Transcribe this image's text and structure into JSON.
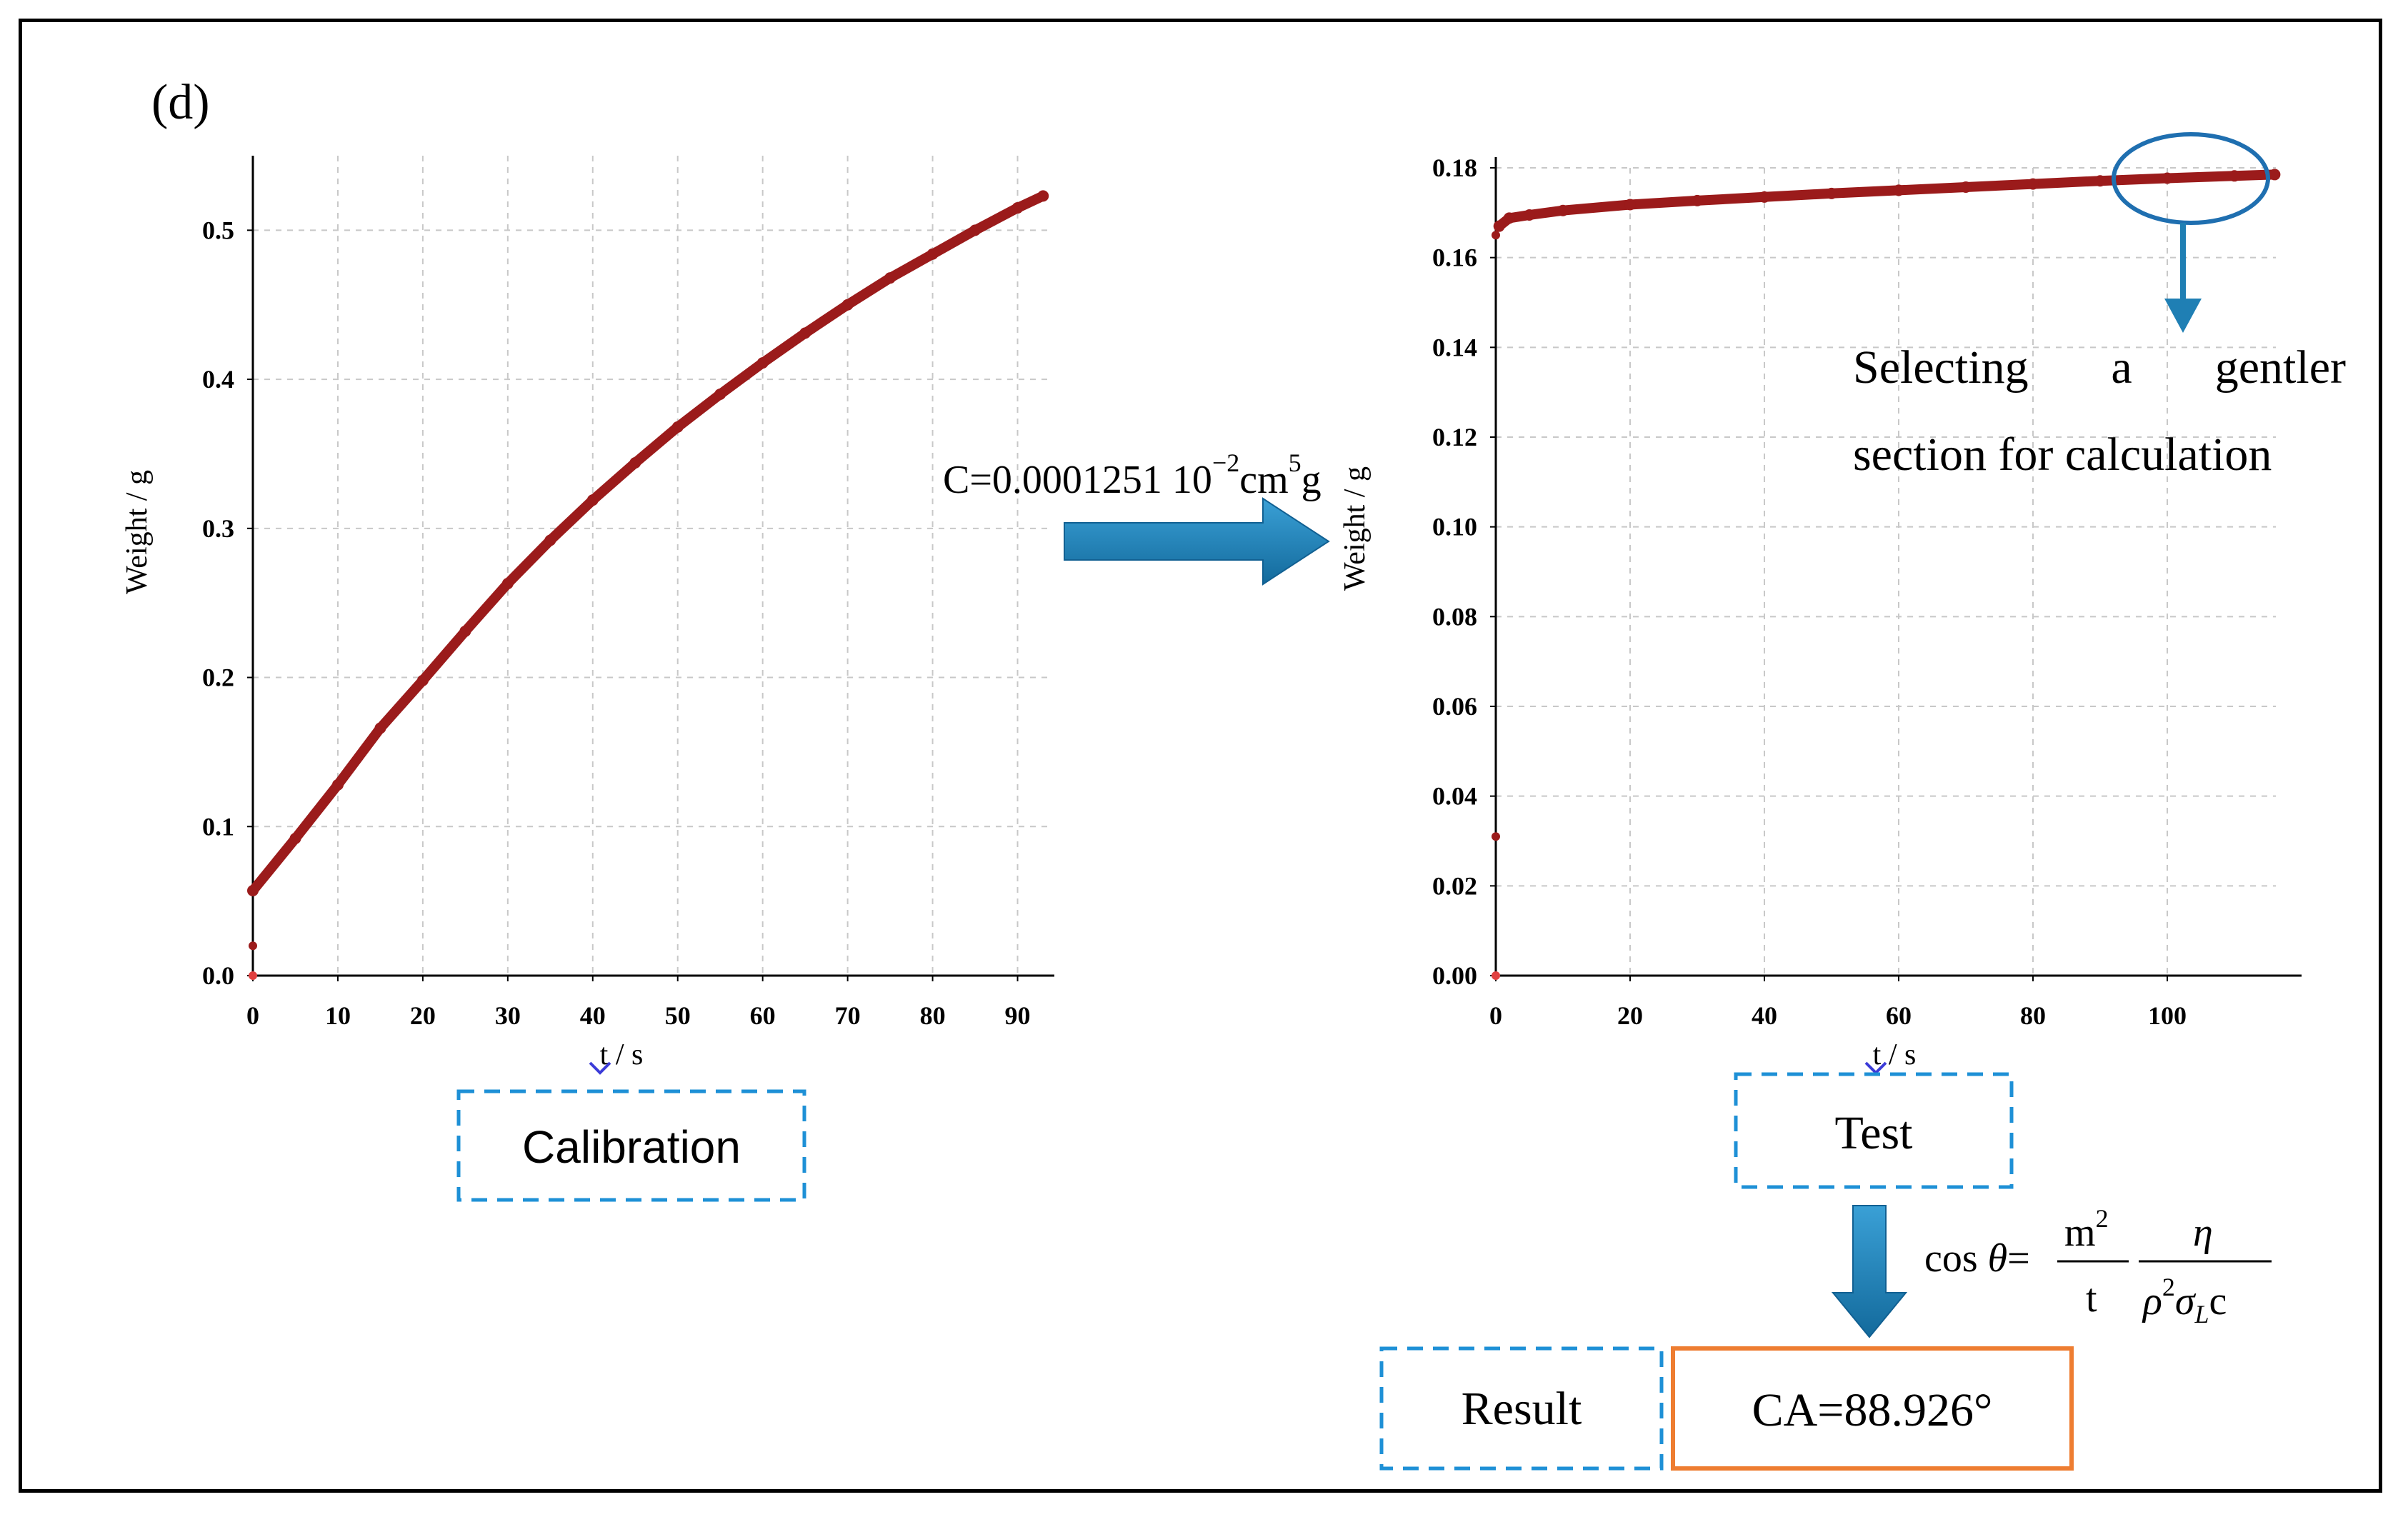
{
  "panel_label": "(d)",
  "colors": {
    "series": "#9b1b1b",
    "arrow": "#1f7fb4",
    "dash_box": "#1e90d6",
    "result_box": "#ee7d31",
    "ellipse": "#1f6fb0"
  },
  "flow": {
    "calibration_label": "Calibration",
    "constant_text": {
      "prefix": "C=0.0001251 10",
      "exp1": "−2",
      "mid": "cm",
      "exp2": "5",
      "suffix": "g"
    },
    "test_label": "Test",
    "selection_note_line1": "Selecting a gentler",
    "selection_note_line1_words": [
      "Selecting",
      "a",
      "gentler"
    ],
    "selection_note_line2": "section for calculation",
    "equation": {
      "lhs_a": "cos ",
      "theta": "θ",
      "eq": "=",
      "num1": "m",
      "num1_sup": "2",
      "den1": "t",
      "num2": "η",
      "den2_a": "ρ",
      "den2_sup": "2",
      "den2_b": "σ",
      "den2_sub": "L",
      "den2_c": "c"
    },
    "result_label": "Result",
    "result_value": "CA=88.926°"
  },
  "chart_data": [
    {
      "type": "scatter",
      "title": "Calibration",
      "xlabel": "t / s",
      "ylabel": "Weight / g",
      "xlim": [
        0,
        95
      ],
      "ylim": [
        0,
        0.55
      ],
      "xticks": [
        0,
        10,
        20,
        30,
        40,
        50,
        60,
        70,
        80,
        90
      ],
      "xtick_labels": [
        "0",
        "10",
        "20",
        "30",
        "40",
        "50",
        "60",
        "70",
        "80",
        "90"
      ],
      "yticks": [
        0,
        0.1,
        0.2,
        0.3,
        0.4,
        0.5
      ],
      "ytick_labels": [
        "0.0",
        "0.1",
        "0.2",
        "0.3",
        "0.4",
        "0.5"
      ],
      "grid": true,
      "outlier_points": [
        {
          "x": 0,
          "y": 0.02
        },
        {
          "x": 0,
          "y": 0.0
        }
      ],
      "series": [
        {
          "name": "Weight",
          "x": [
            0,
            5,
            10,
            15,
            20,
            25,
            30,
            35,
            40,
            45,
            50,
            55,
            60,
            65,
            70,
            75,
            80,
            85,
            90,
            93
          ],
          "y": [
            0.057,
            0.092,
            0.128,
            0.166,
            0.198,
            0.231,
            0.263,
            0.292,
            0.319,
            0.344,
            0.368,
            0.39,
            0.411,
            0.431,
            0.45,
            0.468,
            0.484,
            0.5,
            0.515,
            0.523
          ]
        }
      ]
    },
    {
      "type": "scatter",
      "title": "Test",
      "xlabel": "t / s",
      "ylabel": "Weight / g",
      "xlim": [
        0,
        120
      ],
      "ylim": [
        0,
        0.18
      ],
      "xticks": [
        0,
        20,
        40,
        60,
        80,
        100
      ],
      "xtick_labels": [
        "0",
        "20",
        "40",
        "60",
        "80",
        "100"
      ],
      "yticks": [
        0,
        0.02,
        0.04,
        0.06,
        0.08,
        0.1,
        0.12,
        0.14,
        0.16,
        0.18
      ],
      "ytick_labels": [
        "0.00",
        "0.02",
        "0.04",
        "0.06",
        "0.08",
        "0.10",
        "0.12",
        "0.14",
        "0.16",
        "0.18"
      ],
      "grid": true,
      "outlier_points": [
        {
          "x": 0,
          "y": 0.031
        },
        {
          "x": 0,
          "y": 0.0
        },
        {
          "x": 0,
          "y": 0.165
        }
      ],
      "highlight_range": [
        90,
        116
      ],
      "series": [
        {
          "name": "Weight",
          "x": [
            0.5,
            2,
            5,
            10,
            20,
            30,
            40,
            50,
            60,
            70,
            80,
            90,
            100,
            110,
            116
          ],
          "y": [
            0.167,
            0.1688,
            0.1695,
            0.1705,
            0.1718,
            0.1727,
            0.1735,
            0.1743,
            0.175,
            0.1757,
            0.1764,
            0.1771,
            0.1777,
            0.1782,
            0.1785
          ]
        }
      ]
    }
  ]
}
